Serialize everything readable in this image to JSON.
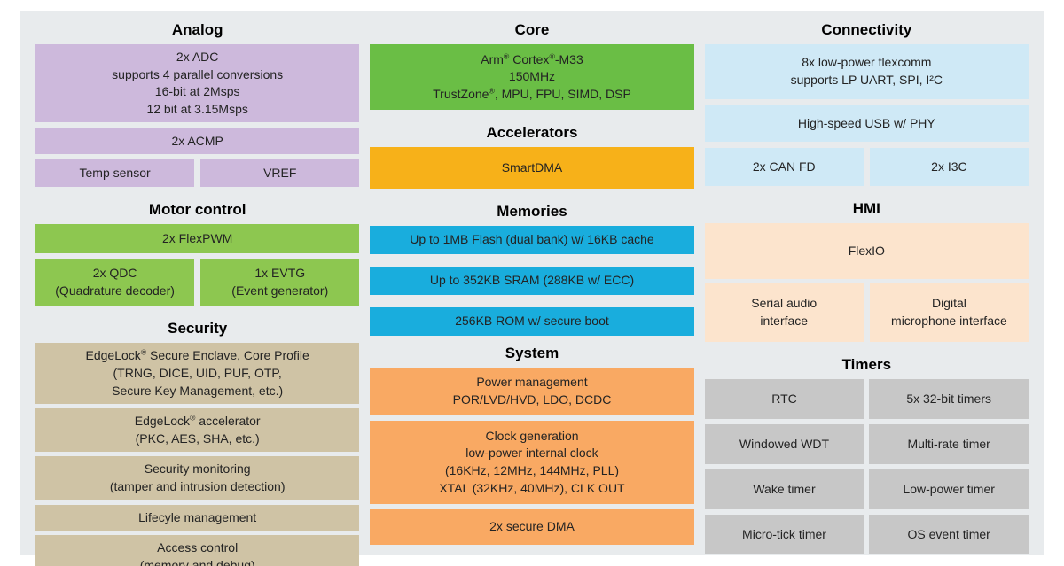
{
  "colors": {
    "panel_bg": "#e8ebed",
    "analog": "#cdb9dc",
    "motor": "#8dc750",
    "core": "#6abe45",
    "accelerators": "#f7b119",
    "memories": "#19addd",
    "system": "#f9a963",
    "security": "#cfc3a5",
    "connectivity": "#cfe9f6",
    "hmi": "#fce4cd",
    "timers": "#c7c7c7",
    "text": "#232323",
    "title": "#000000"
  },
  "sections": {
    "analog": {
      "title": "Analog",
      "adc": [
        "2x ADC",
        "supports 4 parallel conversions",
        "16-bit at 2Msps",
        "12 bit at 3.15Msps"
      ],
      "acmp": "2x ACMP",
      "temp_sensor": "Temp sensor",
      "vref": "VREF"
    },
    "motor_control": {
      "title": "Motor control",
      "flexpwm": "2x FlexPWM",
      "qdc": [
        "2x QDC",
        "(Quadrature decoder)"
      ],
      "evtg": [
        "1x EVTG",
        "(Event generator)"
      ]
    },
    "security": {
      "title": "Security",
      "secure_enclave": [
        "EdgeLock® Secure Enclave, Core Profile",
        "(TRNG, DICE, UID, PUF, OTP,",
        "Secure Key Management, etc.)"
      ],
      "accelerator": [
        "EdgeLock® accelerator",
        "(PKC, AES, SHA, etc.)"
      ],
      "monitoring": [
        "Security monitoring",
        "(tamper and intrusion detection)"
      ],
      "lifecycle": "Lifecyle management",
      "access_control": [
        "Access control",
        "(memory and debug)"
      ]
    },
    "core": {
      "title": "Core",
      "cpu": [
        "Arm® Cortex®-M33",
        "150MHz",
        "TrustZone®, MPU, FPU, SIMD, DSP"
      ]
    },
    "accelerators": {
      "title": "Accelerators",
      "smartdma": "SmartDMA"
    },
    "memories": {
      "title": "Memories",
      "flash": "Up to 1MB Flash (dual bank) w/ 16KB cache",
      "sram": "Up to 352KB SRAM (288KB w/ ECC)",
      "rom": "256KB ROM w/ secure boot"
    },
    "system": {
      "title": "System",
      "power": [
        "Power management",
        "POR/LVD/HVD, LDO, DCDC"
      ],
      "clock": [
        "Clock generation",
        "low-power internal clock",
        "(16KHz, 12MHz, 144MHz, PLL)",
        "XTAL (32KHz, 40MHz), CLK OUT"
      ],
      "dma": "2x secure DMA"
    },
    "connectivity": {
      "title": "Connectivity",
      "flexcomm": [
        "8x low-power flexcomm",
        "supports LP UART, SPI, I²C"
      ],
      "usb": "High-speed USB w/ PHY",
      "canfd": "2x CAN FD",
      "i3c": "2x I3C"
    },
    "hmi": {
      "title": "HMI",
      "flexio": "FlexIO",
      "sai": [
        "Serial audio",
        "interface"
      ],
      "dmic": [
        "Digital",
        "microphone interface"
      ]
    },
    "timers": {
      "title": "Timers",
      "cells": [
        "RTC",
        "5x 32-bit timers",
        "Windowed WDT",
        "Multi-rate timer",
        "Wake timer",
        "Low-power timer",
        "Micro-tick timer",
        "OS event timer"
      ]
    }
  }
}
